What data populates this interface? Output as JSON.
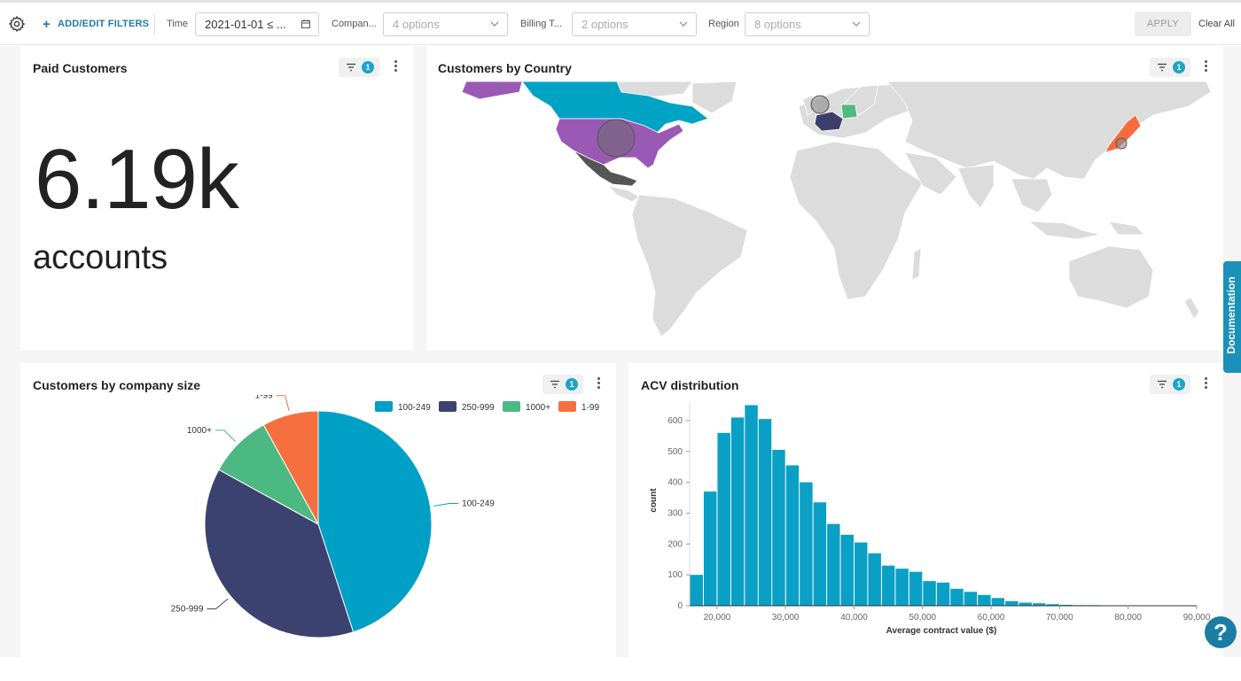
{
  "filterbar": {
    "add_filters_label": "ADD/EDIT FILTERS",
    "time_label": "Time",
    "time_value": "2021-01-01 ≤ ...",
    "company_label": "Compan...",
    "company_placeholder": "4 options",
    "billing_label": "Billing T...",
    "billing_placeholder": "2 options",
    "region_label": "Region",
    "region_placeholder": "8 options",
    "apply_label": "APPLY",
    "clear_label": "Clear All"
  },
  "cards": {
    "paid_customers": {
      "title": "Paid Customers",
      "filter_count": "1",
      "value": "6.19k",
      "unit": "accounts"
    },
    "customers_by_country": {
      "title": "Customers by Country",
      "filter_count": "1"
    },
    "company_size": {
      "title": "Customers by company size",
      "filter_count": "1"
    },
    "acv": {
      "title": "ACV distribution",
      "filter_count": "1"
    }
  },
  "map_colors": {
    "usa": "#9b59b6",
    "canada": "#00a3c4",
    "mexico": "#555555",
    "france": "#3d3f6b",
    "germany": "#4fba82",
    "japan": "#f76b3c",
    "land": "#dcdcdc"
  },
  "side": {
    "documentation_label": "Documentation",
    "help_label": "?"
  },
  "chart_data": [
    {
      "type": "pie",
      "title": "Customers by company size",
      "labels": [
        "100-249",
        "250-999",
        "1000+",
        "1-99"
      ],
      "values": [
        45,
        38,
        9,
        8
      ],
      "colors": [
        "#00a0c6",
        "#3b4270",
        "#4cb882",
        "#f5703e"
      ],
      "legend": "top-right"
    },
    {
      "type": "bar",
      "title": "ACV distribution",
      "xlabel": "Average contract value ($)",
      "ylabel": "count",
      "x_ticks": [
        "20,000",
        "30,000",
        "40,000",
        "50,000",
        "60,000",
        "70,000",
        "80,000",
        "90,000"
      ],
      "y_ticks": [
        "0",
        "100",
        "200",
        "300",
        "400",
        "500",
        "600"
      ],
      "xlim": [
        16000,
        90000
      ],
      "ylim": [
        0,
        660
      ],
      "bin_width": 2000,
      "bin_starts": [
        16000,
        18000,
        20000,
        22000,
        24000,
        26000,
        28000,
        30000,
        32000,
        34000,
        36000,
        38000,
        40000,
        42000,
        44000,
        46000,
        48000,
        50000,
        52000,
        54000,
        56000,
        58000,
        60000,
        62000,
        64000,
        66000,
        68000,
        70000,
        72000,
        74000,
        76000,
        78000,
        80000,
        82000,
        84000,
        86000,
        88000
      ],
      "values": [
        100,
        370,
        560,
        610,
        650,
        605,
        505,
        455,
        400,
        335,
        265,
        230,
        205,
        170,
        130,
        120,
        110,
        80,
        75,
        55,
        45,
        35,
        25,
        15,
        10,
        8,
        5,
        3,
        2,
        2,
        1,
        1,
        1,
        1,
        1,
        1,
        1
      ],
      "bar_color": "#0aa0c6",
      "grid": false
    }
  ]
}
